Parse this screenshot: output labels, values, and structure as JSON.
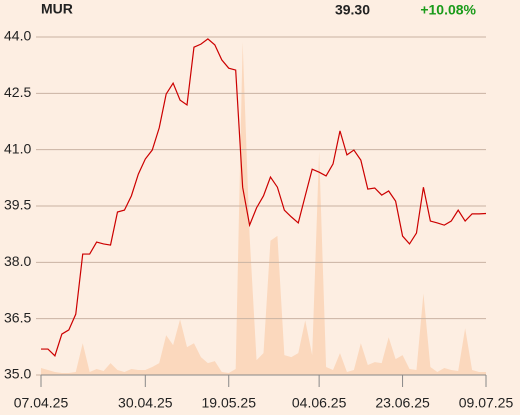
{
  "chart_data": {
    "type": "line",
    "title": "MUR",
    "last_price": "39.30",
    "change": "+10.08%",
    "categories": [
      "07.04.25",
      null,
      null,
      null,
      null,
      null,
      null,
      null,
      null,
      null,
      null,
      null,
      null,
      null,
      null,
      "30.04.25",
      null,
      null,
      null,
      null,
      null,
      null,
      null,
      null,
      null,
      null,
      null,
      "19.05.25",
      null,
      null,
      null,
      null,
      null,
      null,
      null,
      null,
      null,
      null,
      null,
      null,
      "04.06.25",
      null,
      null,
      null,
      null,
      null,
      null,
      null,
      null,
      null,
      null,
      null,
      "23.06.25",
      null,
      null,
      null,
      null,
      null,
      null,
      null,
      null,
      null,
      null,
      null,
      "09.07.25"
    ],
    "series": [
      {
        "color": "#cc0000",
        "values": [
          35.69,
          35.69,
          35.51,
          36.09,
          36.2,
          36.62,
          38.22,
          38.22,
          38.54,
          38.49,
          38.46,
          39.34,
          39.39,
          39.77,
          40.35,
          40.75,
          40.99,
          41.58,
          42.48,
          42.77,
          42.32,
          42.19,
          43.73,
          43.81,
          43.95,
          43.79,
          43.39,
          43.17,
          43.12,
          40.0,
          38.99,
          39.45,
          39.77,
          40.27,
          40.0,
          39.39,
          39.21,
          39.05,
          39.77,
          40.48,
          40.4,
          40.3,
          40.62,
          41.5,
          40.86,
          40.99,
          40.72,
          39.95,
          39.98,
          39.79,
          39.9,
          39.63,
          38.7,
          38.49,
          38.78,
          40.0,
          39.1,
          39.05,
          38.99,
          39.1,
          39.39,
          39.1,
          39.29,
          39.29,
          39.3
        ]
      },
      {
        "color": "#fbd8bd",
        "axis": "y2",
        "values": [
          7,
          5,
          3,
          2,
          2,
          3,
          32,
          3,
          6,
          4,
          12,
          5,
          3,
          6,
          5,
          5,
          8,
          12,
          40,
          30,
          56,
          28,
          32,
          18,
          12,
          14,
          3,
          2,
          6,
          335,
          140,
          15,
          22,
          135,
          140,
          20,
          18,
          22,
          55,
          20,
          225,
          8,
          5,
          22,
          3,
          5,
          32,
          10,
          13,
          12,
          38,
          16,
          20,
          6,
          5,
          82,
          8,
          3,
          7,
          5,
          4,
          47,
          5,
          3,
          3
        ]
      }
    ],
    "ylim": [
      35,
      44
    ],
    "yticks": [
      {
        "value": 35,
        "label": "35.0"
      },
      36.5,
      {
        "value": 38,
        "label": "38.0"
      },
      39.5,
      {
        "value": 41,
        "label": "41.0"
      },
      42.5,
      {
        "value": 44,
        "label": "44.0"
      }
    ],
    "y2lim": [
      0,
      340
    ],
    "grid": true
  }
}
